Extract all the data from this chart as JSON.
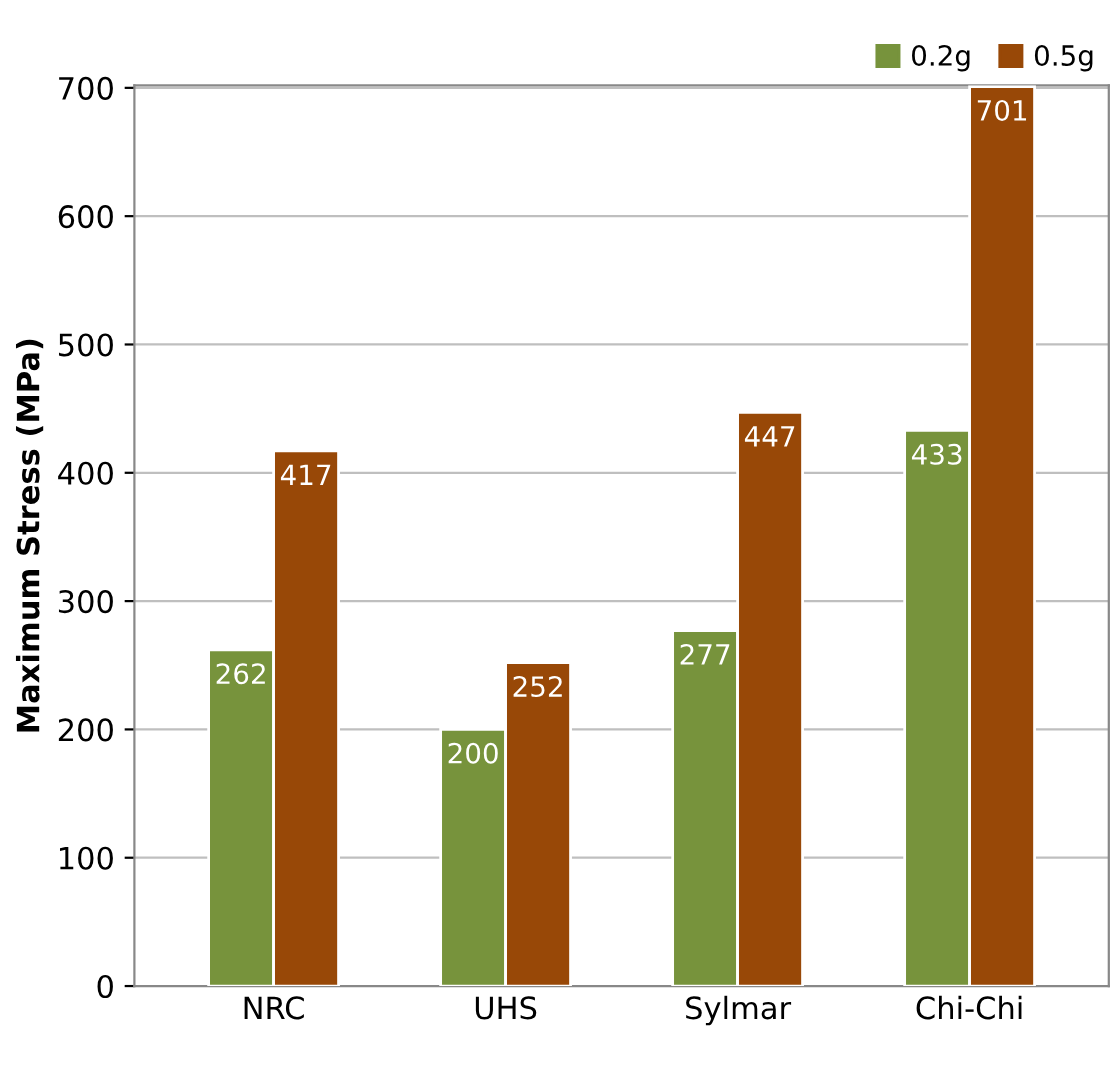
{
  "chart_data": {
    "type": "bar",
    "ylabel": "Maximum Stress (MPa)",
    "categories": [
      "NRC",
      "UHS",
      "Sylmar",
      "Chi-Chi"
    ],
    "series": [
      {
        "name": "0.2g",
        "color": "#77933c",
        "values": [
          262,
          200,
          277,
          433
        ]
      },
      {
        "name": "0.5g",
        "color": "#984807",
        "values": [
          417,
          252,
          447,
          701
        ]
      }
    ],
    "ylim": [
      0,
      702
    ],
    "yticks": [
      0,
      100,
      200,
      300,
      400,
      500,
      600,
      700
    ],
    "grid": "y",
    "legend": "top right",
    "data_labels": true
  }
}
